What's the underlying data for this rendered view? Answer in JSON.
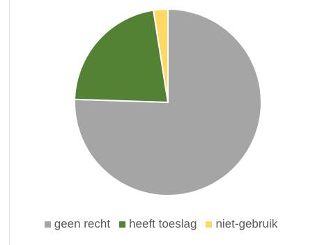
{
  "chart_data": {
    "type": "pie",
    "title": "",
    "categories": [
      "geen recht",
      "heeft toeslag",
      "niet-gebruik"
    ],
    "values": [
      75.5,
      22.0,
      2.5
    ],
    "colors": [
      "#a5a5a5",
      "#548235",
      "#ffd966"
    ],
    "start_angle_deg": 0,
    "direction": "clockwise",
    "legend_position": "bottom"
  },
  "legend": {
    "items": [
      {
        "label": "geen recht",
        "color": "#a5a5a5"
      },
      {
        "label": "heeft toeslag",
        "color": "#548235"
      },
      {
        "label": "niet-gebruik",
        "color": "#ffd966"
      }
    ]
  }
}
